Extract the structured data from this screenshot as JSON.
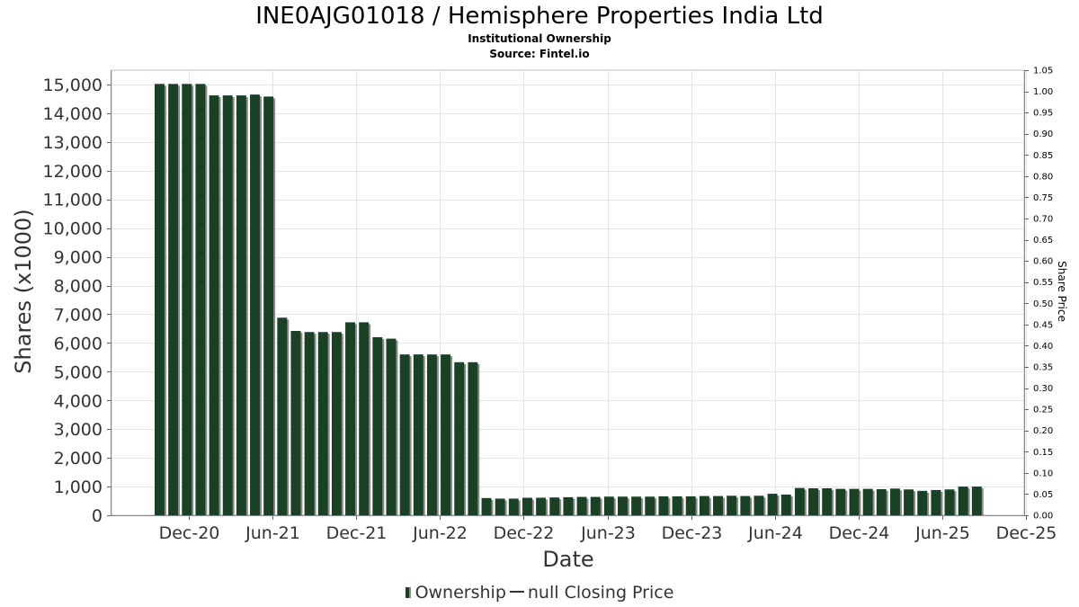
{
  "chart_data": {
    "type": "bar",
    "title": "INE0AJG01018 / Hemisphere Properties India Ltd",
    "subtitle_lines": [
      "Institutional Ownership",
      "Source: Fintel.io"
    ],
    "xlabel": "Date",
    "ylabel": "Shares (x1000)",
    "y2label": "Share Price",
    "ylim": [
      0,
      15500
    ],
    "y2lim": [
      0,
      1.05
    ],
    "x_ticks": [
      "Dec-20",
      "Jun-21",
      "Dec-21",
      "Jun-22",
      "Dec-22",
      "Jun-23",
      "Dec-23",
      "Jun-24",
      "Dec-24",
      "Jun-25",
      "Dec-25"
    ],
    "y_ticks": [
      "0",
      "1,000",
      "2,000",
      "3,000",
      "4,000",
      "5,000",
      "6,000",
      "7,000",
      "8,000",
      "9,000",
      "10,000",
      "11,000",
      "12,000",
      "13,000",
      "14,000",
      "15,000"
    ],
    "y2_ticks": [
      "0.00",
      "0.05",
      "0.10",
      "0.15",
      "0.20",
      "0.25",
      "0.30",
      "0.35",
      "0.40",
      "0.45",
      "0.50",
      "0.55",
      "0.60",
      "0.65",
      "0.70",
      "0.75",
      "0.80",
      "0.85",
      "0.90",
      "0.95",
      "1.00",
      "1.05"
    ],
    "grid": true,
    "legend_position": "bottom-center",
    "series": [
      {
        "name": "Ownership",
        "color": "#1a4126",
        "values": [
          15020,
          15020,
          15020,
          15020,
          14620,
          14620,
          14620,
          14650,
          14580,
          6880,
          6420,
          6380,
          6380,
          6380,
          6720,
          6720,
          6200,
          6150,
          5600,
          5600,
          5600,
          5600,
          5330,
          5330,
          600,
          580,
          580,
          610,
          610,
          620,
          630,
          640,
          640,
          650,
          650,
          650,
          650,
          660,
          660,
          660,
          670,
          670,
          680,
          670,
          680,
          750,
          720,
          950,
          940,
          940,
          920,
          920,
          920,
          910,
          930,
          900,
          850,
          880,
          900,
          1000,
          1000
        ]
      },
      {
        "name": "null Closing Price",
        "color": "#333333",
        "values": []
      }
    ]
  },
  "legend": {
    "ownership_label": "Ownership",
    "price_label": "null Closing Price"
  }
}
